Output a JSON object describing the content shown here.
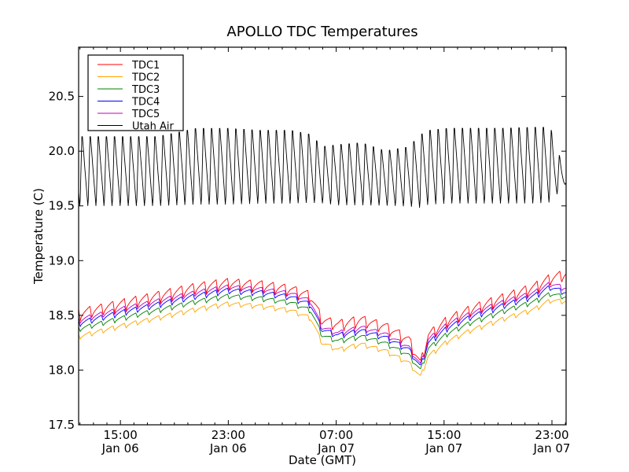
{
  "chart_data": {
    "type": "line",
    "title": "APOLLO TDC Temperatures",
    "xlabel": "Date (GMT)",
    "ylabel": "Temperature (C)",
    "x_units": "hours since 00:00 Jan 06 (GMT)",
    "xlim": [
      11.9,
      48.05
    ],
    "ylim": [
      17.5,
      20.95
    ],
    "grid": false,
    "legend_position": "top-left",
    "yticks": [
      17.5,
      18.0,
      18.5,
      19.0,
      19.5,
      20.0,
      20.5
    ],
    "ytick_labels": [
      "17.5",
      "18.0",
      "18.5",
      "19.0",
      "19.5",
      "20.0",
      "20.5"
    ],
    "xticks": [
      {
        "value": 15,
        "time": "15:00",
        "date": "Jan 06"
      },
      {
        "value": 23,
        "time": "23:00",
        "date": "Jan 06"
      },
      {
        "value": 31,
        "time": "07:00",
        "date": "Jan 07"
      },
      {
        "value": 39,
        "time": "15:00",
        "date": "Jan 07"
      },
      {
        "value": 47,
        "time": "23:00",
        "date": "Jan 07"
      }
    ],
    "x": [
      11.9,
      14.81,
      17.73,
      20.64,
      22.97,
      25.3,
      27.63,
      29.09,
      29.97,
      31.13,
      32.88,
      34.63,
      36.38,
      37.25,
      37.83,
      39.29,
      41.04,
      43.37,
      45.7,
      46.87,
      48.03
    ],
    "series": [
      {
        "name": "TDC1",
        "color": "#ff0000",
        "ripple_amplitude": 0.12,
        "ripple_period_h": 0.85,
        "values": [
          18.5,
          18.58,
          18.66,
          18.74,
          18.78,
          18.76,
          18.72,
          18.66,
          18.44,
          18.4,
          18.44,
          18.38,
          18.26,
          18.04,
          18.3,
          18.44,
          18.54,
          18.64,
          18.74,
          18.82,
          18.86
        ]
      },
      {
        "name": "TDC2",
        "color": "#ffa500",
        "ripple_amplitude": 0.05,
        "ripple_period_h": 0.85,
        "values": [
          18.3,
          18.39,
          18.47,
          18.55,
          18.6,
          18.58,
          18.54,
          18.47,
          18.24,
          18.18,
          18.23,
          18.17,
          18.06,
          17.93,
          18.12,
          18.26,
          18.36,
          18.46,
          18.55,
          18.63,
          18.62
        ]
      },
      {
        "name": "TDC3",
        "color": "#008000",
        "ripple_amplitude": 0.05,
        "ripple_period_h": 0.85,
        "values": [
          18.37,
          18.46,
          18.54,
          18.62,
          18.67,
          18.65,
          18.61,
          18.54,
          18.31,
          18.26,
          18.3,
          18.24,
          18.13,
          17.99,
          18.19,
          18.33,
          18.43,
          18.53,
          18.62,
          18.69,
          18.66
        ]
      },
      {
        "name": "TDC4",
        "color": "#0000ff",
        "ripple_amplitude": 0.06,
        "ripple_period_h": 0.85,
        "values": [
          18.42,
          18.51,
          18.59,
          18.67,
          18.72,
          18.7,
          18.66,
          18.59,
          18.36,
          18.31,
          18.35,
          18.29,
          18.18,
          18.02,
          18.24,
          18.38,
          18.48,
          18.58,
          18.67,
          18.75,
          18.7
        ]
      },
      {
        "name": "TDC5",
        "color": "#bf00bf",
        "ripple_amplitude": 0.06,
        "ripple_period_h": 0.85,
        "values": [
          18.45,
          18.54,
          18.62,
          18.7,
          18.75,
          18.73,
          18.69,
          18.62,
          18.38,
          18.33,
          18.38,
          18.32,
          18.2,
          18.04,
          18.27,
          18.41,
          18.51,
          18.61,
          18.7,
          18.78,
          18.74
        ]
      },
      {
        "name": "Utah Air",
        "color": "#000000",
        "ripple_period_h": 0.6,
        "low": [
          19.47,
          19.47,
          19.47,
          19.48,
          19.48,
          19.49,
          19.49,
          19.5,
          19.5,
          19.48,
          19.48,
          19.48,
          19.47,
          19.45,
          19.48,
          19.49,
          19.49,
          19.49,
          19.49,
          19.5,
          19.7
        ],
        "high": [
          20.18,
          20.18,
          20.18,
          20.26,
          20.26,
          20.24,
          20.24,
          20.2,
          20.08,
          20.1,
          20.12,
          20.04,
          20.08,
          20.2,
          20.24,
          20.26,
          20.26,
          20.26,
          20.27,
          20.27,
          19.78
        ]
      }
    ]
  }
}
